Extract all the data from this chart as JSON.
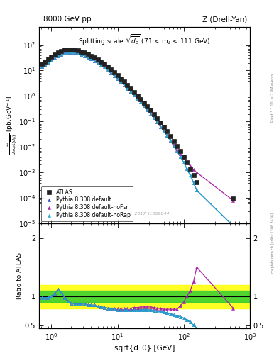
{
  "title_left": "8000 GeV pp",
  "title_right": "Z (Drell-Yan)",
  "plot_title": "Splitting scale $\\sqrt{\\overline{d_0}}$ (71 < m$_{ll}$ < 111 GeV)",
  "ylabel_ratio": "Ratio to ATLAS",
  "xlabel": "sqrt{d_0} [GeV]",
  "watermark": "ATLAS_2017_I1589844",
  "side_text_top": "Rivet 3.1.10; ≥ 2.8M events",
  "side_text_bottom": "mcplots.cern.ch [arXiv:1306.3436]",
  "xlim": [
    0.65,
    1000
  ],
  "ylim_main": [
    1e-05,
    500
  ],
  "ylim_ratio": [
    0.45,
    2.25
  ],
  "green_band_lo": 0.9,
  "green_band_hi": 1.1,
  "yellow_band_lo": 0.8,
  "yellow_band_hi": 1.2,
  "atlas_x": [
    0.71,
    0.79,
    0.89,
    1.0,
    1.12,
    1.26,
    1.41,
    1.58,
    1.78,
    2.0,
    2.24,
    2.51,
    2.82,
    3.16,
    3.55,
    3.98,
    4.47,
    5.01,
    5.62,
    6.31,
    7.08,
    7.94,
    8.91,
    10.0,
    11.2,
    12.6,
    14.1,
    15.8,
    17.8,
    20.0,
    22.4,
    25.1,
    28.2,
    31.6,
    35.5,
    39.8,
    44.7,
    50.1,
    56.2,
    63.1,
    70.8,
    79.4,
    89.1,
    100.0,
    112.0,
    126.0,
    141.0,
    158.0,
    562.0
  ],
  "atlas_y": [
    18,
    22,
    28,
    35,
    42,
    50,
    58,
    64,
    67,
    68,
    66,
    61,
    56,
    50,
    44,
    38,
    32,
    27,
    22,
    18,
    14,
    11,
    8.5,
    6.5,
    4.8,
    3.6,
    2.7,
    2.0,
    1.45,
    1.05,
    0.76,
    0.55,
    0.39,
    0.28,
    0.195,
    0.135,
    0.092,
    0.062,
    0.041,
    0.027,
    0.017,
    0.011,
    0.0069,
    0.0042,
    0.0025,
    0.0014,
    0.00078,
    0.00042,
    9.5e-05
  ],
  "py_def_x": [
    0.71,
    0.79,
    0.89,
    1.0,
    1.12,
    1.26,
    1.41,
    1.58,
    1.78,
    2.0,
    2.24,
    2.51,
    2.82,
    3.16,
    3.55,
    3.98,
    4.47,
    5.01,
    5.62,
    6.31,
    7.08,
    7.94,
    8.91,
    10.0,
    11.2,
    12.6,
    14.1,
    15.8,
    17.8,
    20.0,
    22.4,
    25.1,
    28.2,
    31.6,
    35.5,
    39.8,
    44.7,
    50.1,
    56.2,
    63.1,
    70.8,
    79.4,
    89.1,
    100.0,
    112.0,
    126.0,
    141.0,
    158.0,
    562.0
  ],
  "py_def_y": [
    14,
    17,
    21,
    25,
    30,
    36,
    42,
    47,
    50,
    51,
    50,
    47,
    43,
    38,
    33,
    28,
    24,
    20,
    16,
    13,
    10.2,
    8.0,
    6.2,
    4.8,
    3.6,
    2.7,
    2.0,
    1.48,
    1.09,
    0.79,
    0.57,
    0.41,
    0.29,
    0.2,
    0.14,
    0.095,
    0.063,
    0.042,
    0.028,
    0.018,
    0.011,
    0.0069,
    0.0042,
    0.0025,
    0.0014,
    0.00077,
    0.0004,
    0.0002,
    8e-06
  ],
  "py_noFsr_x": [
    0.71,
    0.79,
    0.89,
    1.0,
    1.12,
    1.26,
    1.41,
    1.58,
    1.78,
    2.0,
    2.24,
    2.51,
    2.82,
    3.16,
    3.55,
    3.98,
    4.47,
    5.01,
    5.62,
    6.31,
    7.08,
    7.94,
    8.91,
    10.0,
    11.2,
    12.6,
    14.1,
    15.8,
    17.8,
    20.0,
    22.4,
    25.1,
    28.2,
    31.6,
    35.5,
    39.8,
    44.7,
    50.1,
    56.2,
    63.1,
    70.8,
    79.4,
    89.1,
    100.0,
    112.0,
    126.0,
    141.0,
    158.0,
    562.0
  ],
  "py_noFsr_y": [
    14,
    17,
    21,
    25,
    30,
    36,
    42,
    47,
    50,
    51,
    50,
    47,
    43,
    38,
    33,
    28,
    24,
    20,
    16,
    13,
    10.2,
    8.0,
    6.2,
    4.8,
    3.6,
    2.7,
    2.0,
    1.48,
    1.09,
    0.79,
    0.57,
    0.41,
    0.29,
    0.2,
    0.14,
    0.095,
    0.063,
    0.042,
    0.028,
    0.018,
    0.012,
    0.008,
    0.0053,
    0.0036,
    0.0025,
    0.0018,
    0.0013,
    0.001,
    8e-05
  ],
  "py_noRap_x": [
    0.71,
    0.79,
    0.89,
    1.0,
    1.12,
    1.26,
    1.41,
    1.58,
    1.78,
    2.0,
    2.24,
    2.51,
    2.82,
    3.16,
    3.55,
    3.98,
    4.47,
    5.01,
    5.62,
    6.31,
    7.08,
    7.94,
    8.91,
    10.0,
    11.2,
    12.6,
    14.1,
    15.8,
    17.8,
    20.0,
    22.4,
    25.1,
    28.2,
    31.6,
    35.5,
    39.8,
    44.7,
    50.1,
    56.2,
    63.1,
    70.8,
    79.4,
    89.1,
    100.0,
    112.0,
    126.0,
    141.0,
    158.0,
    562.0
  ],
  "py_noRap_y": [
    14,
    17,
    21,
    25,
    30,
    36,
    42,
    47,
    50,
    51,
    50,
    47,
    43,
    38,
    33,
    28,
    24,
    20,
    16,
    13,
    10.2,
    8.0,
    6.2,
    4.8,
    3.6,
    2.7,
    2.0,
    1.48,
    1.09,
    0.79,
    0.57,
    0.41,
    0.29,
    0.2,
    0.14,
    0.095,
    0.063,
    0.042,
    0.028,
    0.018,
    0.011,
    0.0069,
    0.0042,
    0.0025,
    0.0014,
    0.00077,
    0.0004,
    0.0002,
    8e-06
  ],
  "ratio_def": [
    0.98,
    0.98,
    0.98,
    1.0,
    1.05,
    1.12,
    1.07,
    0.98,
    0.92,
    0.88,
    0.87,
    0.87,
    0.87,
    0.87,
    0.86,
    0.85,
    0.85,
    0.83,
    0.82,
    0.81,
    0.8,
    0.79,
    0.78,
    0.77,
    0.77,
    0.77,
    0.77,
    0.77,
    0.77,
    0.77,
    0.77,
    0.77,
    0.77,
    0.77,
    0.76,
    0.75,
    0.74,
    0.73,
    0.72,
    0.7,
    0.69,
    0.67,
    0.65,
    0.63,
    0.6,
    0.56,
    0.51,
    0.46,
    0.085
  ],
  "ratio_noFsr": [
    0.98,
    0.98,
    0.98,
    1.0,
    1.05,
    1.12,
    1.07,
    0.98,
    0.92,
    0.88,
    0.87,
    0.87,
    0.87,
    0.87,
    0.86,
    0.85,
    0.85,
    0.83,
    0.82,
    0.81,
    0.8,
    0.8,
    0.8,
    0.8,
    0.8,
    0.8,
    0.8,
    0.8,
    0.81,
    0.81,
    0.82,
    0.82,
    0.82,
    0.82,
    0.81,
    0.8,
    0.79,
    0.78,
    0.78,
    0.78,
    0.78,
    0.78,
    0.84,
    0.9,
    1.0,
    1.1,
    1.25,
    1.5,
    0.8
  ],
  "ratio_noRap": [
    0.98,
    0.98,
    0.98,
    1.0,
    1.05,
    1.12,
    1.07,
    0.98,
    0.92,
    0.88,
    0.87,
    0.87,
    0.87,
    0.87,
    0.86,
    0.85,
    0.85,
    0.83,
    0.82,
    0.81,
    0.8,
    0.79,
    0.78,
    0.77,
    0.77,
    0.77,
    0.77,
    0.77,
    0.77,
    0.77,
    0.77,
    0.77,
    0.77,
    0.77,
    0.76,
    0.75,
    0.74,
    0.73,
    0.72,
    0.7,
    0.69,
    0.67,
    0.65,
    0.63,
    0.6,
    0.56,
    0.51,
    0.46,
    0.085
  ],
  "color_atlas": "#222222",
  "color_default": "#2244cc",
  "color_noFsr": "#aa22aa",
  "color_noRap": "#22aacc"
}
